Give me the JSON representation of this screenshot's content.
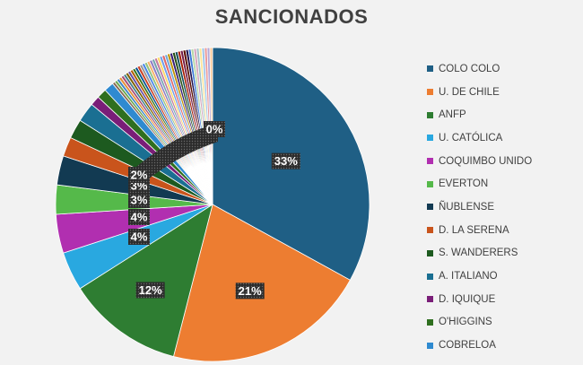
{
  "chart_data": {
    "type": "pie",
    "title": "SANCIONADOS",
    "categories": [
      "COLO COLO",
      "U. DE CHILE",
      "ANFP",
      "U. CATÓLICA",
      "COQUIMBO UNIDO",
      "EVERTON",
      "ÑUBLENSE",
      "D. LA SERENA",
      "S. WANDERERS",
      "A. ITALIANO",
      "D. IQUIQUE",
      "O'HIGGINS",
      "COBRELOA"
    ],
    "values": [
      33,
      21,
      12,
      4,
      4,
      3,
      3,
      2,
      2,
      2,
      1,
      1,
      1
    ],
    "data_labels": [
      "33%",
      "21%",
      "12%",
      "4%",
      "4%",
      "3%",
      "3%",
      "2%",
      "",
      "",
      "",
      "",
      ""
    ],
    "other_label": "0%",
    "colors": [
      "#1f5f85",
      "#ed7d31",
      "#2e7d32",
      "#29a8e0",
      "#b12fb0",
      "#55b94a",
      "#123a52",
      "#c9541c",
      "#1d5a1f",
      "#1a6f92",
      "#7a1e78",
      "#2f6f1f",
      "#2f8ad0"
    ],
    "minor_colors": [
      "#8a6b55",
      "#6aa84f",
      "#3d85c6",
      "#e69138",
      "#a64d79",
      "#45818e",
      "#7f6000",
      "#674ea7",
      "#b45f06",
      "#38761d",
      "#0b5394",
      "#cc4125",
      "#999999",
      "#4a86e8",
      "#93c47d",
      "#f6b26b",
      "#8e7cc3",
      "#76a5af",
      "#c27ba0",
      "#ffd966",
      "#6d9eeb",
      "#e06666",
      "#6fa8dc",
      "#bf9000",
      "#351c75",
      "#274e13",
      "#134f5c",
      "#a61c00",
      "#741b47",
      "#5b0f00",
      "#20124d",
      "#3c78d8",
      "#b6d7a8",
      "#d5a6bd",
      "#a2c4c9",
      "#ffe599",
      "#9fc5e8",
      "#ea9999",
      "#b4a7d6",
      "#f9cb9c"
    ],
    "legend_position": "right"
  }
}
